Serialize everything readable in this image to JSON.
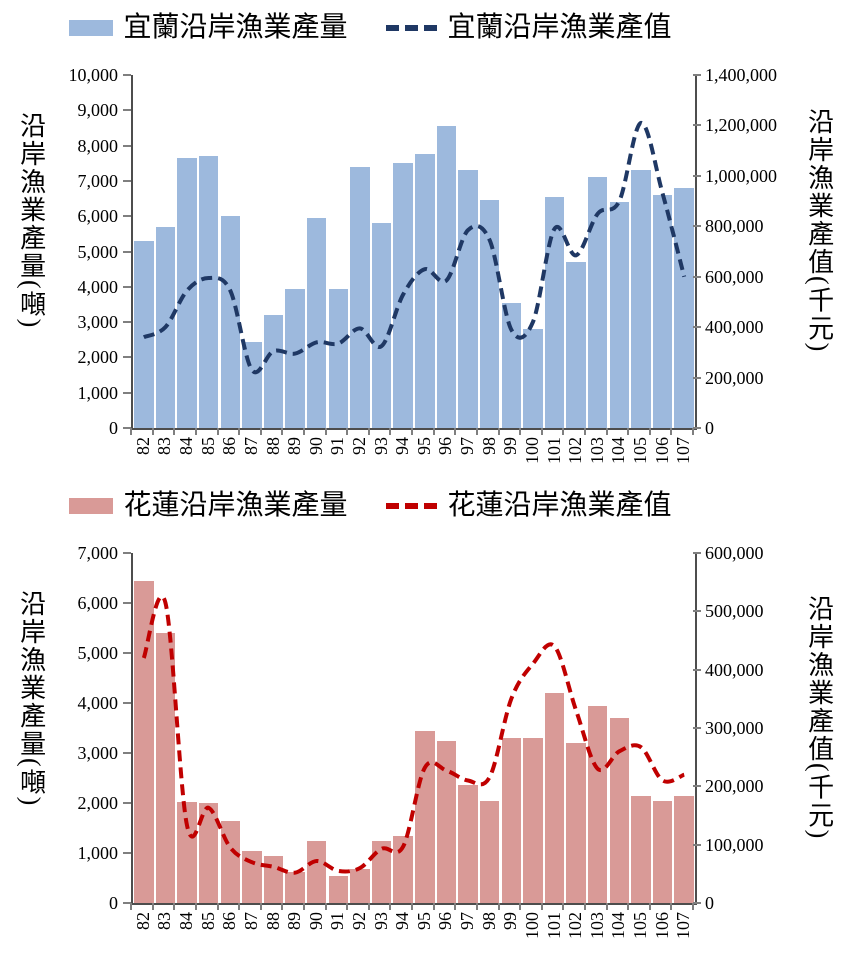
{
  "chart_data": [
    {
      "type": "bar",
      "subtype": "bar+line-combo",
      "title": "",
      "categories": [
        "82",
        "83",
        "84",
        "85",
        "86",
        "87",
        "88",
        "89",
        "90",
        "91",
        "92",
        "93",
        "94",
        "95",
        "96",
        "97",
        "98",
        "99",
        "100",
        "101",
        "102",
        "103",
        "104",
        "105",
        "106",
        "107"
      ],
      "series": [
        {
          "name": "宜蘭沿岸漁業產量",
          "type": "bar",
          "axis": "left",
          "color": "#9db9dd",
          "values": [
            5300,
            5700,
            7650,
            7700,
            6000,
            2450,
            3200,
            3950,
            5950,
            3950,
            7400,
            5800,
            7500,
            7750,
            8550,
            7300,
            6450,
            3550,
            2800,
            6550,
            4700,
            7100,
            6400,
            7300,
            6600,
            6800
          ]
        },
        {
          "name": "宜蘭沿岸漁業產值",
          "type": "line",
          "style": "dashed",
          "axis": "right",
          "color": "#1f3864",
          "values": [
            360000,
            400000,
            545000,
            595000,
            545000,
            230000,
            305000,
            295000,
            340000,
            335000,
            395000,
            325000,
            530000,
            630000,
            585000,
            785000,
            745000,
            390000,
            420000,
            790000,
            685000,
            850000,
            900000,
            1210000,
            930000,
            600000
          ]
        }
      ],
      "left_axis": {
        "label": "沿岸漁業產量(噸)",
        "range": [
          0,
          10000
        ],
        "step": 1000,
        "ticks": [
          "10,000",
          "9,000",
          "8,000",
          "7,000",
          "6,000",
          "5,000",
          "4,000",
          "3,000",
          "2,000",
          "1,000",
          "0"
        ]
      },
      "right_axis": {
        "label": "沿岸漁業產值(千元)",
        "range": [
          0,
          1400000
        ],
        "step": 200000,
        "ticks": [
          "1,400,000",
          "1,200,000",
          "1,000,000",
          "800,000",
          "600,000",
          "400,000",
          "200,000",
          "0"
        ]
      },
      "grid": false,
      "legend_position": "top"
    },
    {
      "type": "bar",
      "subtype": "bar+line-combo",
      "title": "",
      "categories": [
        "82",
        "83",
        "84",
        "85",
        "86",
        "87",
        "88",
        "89",
        "90",
        "91",
        "92",
        "93",
        "94",
        "95",
        "96",
        "97",
        "98",
        "99",
        "100",
        "101",
        "102",
        "103",
        "104",
        "105",
        "106",
        "107"
      ],
      "series": [
        {
          "name": "花蓮沿岸漁業產量",
          "type": "bar",
          "axis": "left",
          "color": "#d99a97",
          "values": [
            6450,
            5400,
            2030,
            2000,
            1640,
            1050,
            950,
            630,
            1240,
            550,
            690,
            1240,
            1350,
            3450,
            3250,
            2360,
            2050,
            3300,
            3300,
            4200,
            3200,
            3950,
            3700,
            2150,
            2050,
            2150
          ]
        },
        {
          "name": "花蓮沿岸漁業產值",
          "type": "line",
          "style": "dashed",
          "axis": "right",
          "color": "#c00000",
          "values": [
            420000,
            515000,
            133000,
            163000,
            95000,
            70000,
            62000,
            52000,
            72000,
            55000,
            60000,
            93000,
            97000,
            232000,
            227000,
            210000,
            216000,
            350000,
            410000,
            440000,
            330000,
            230000,
            260000,
            267000,
            210000,
            220000
          ]
        }
      ],
      "left_axis": {
        "label": "沿岸漁業產量(噸)",
        "range": [
          0,
          7000
        ],
        "step": 1000,
        "ticks": [
          "7,000",
          "6,000",
          "5,000",
          "4,000",
          "3,000",
          "2,000",
          "1,000",
          "0"
        ]
      },
      "right_axis": {
        "label": "沿岸漁業產值(千元)",
        "range": [
          0,
          600000
        ],
        "step": 100000,
        "ticks": [
          "600,000",
          "500,000",
          "400,000",
          "300,000",
          "200,000",
          "100,000",
          "0"
        ]
      },
      "grid": false,
      "legend_position": "top"
    }
  ]
}
